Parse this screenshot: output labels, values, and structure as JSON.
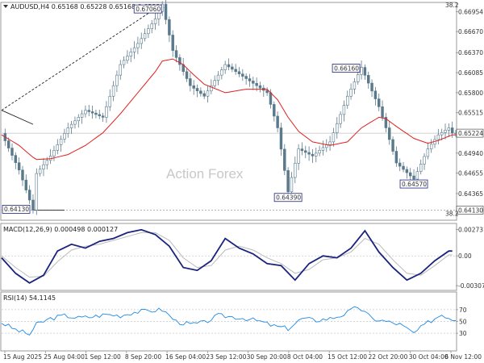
{
  "header": {
    "symbol_line": "AUDUSD,H4  0.65168 0.65228 0.65168 0.65224",
    "top_right": "38.2"
  },
  "watermark": "Action Forex",
  "colors": {
    "candle": "#5a7a8c",
    "ma": "#e02020",
    "macd": "#1a237e",
    "signal": "#bbbbbb",
    "rsi": "#1e88e5",
    "trend": "#222222"
  },
  "chart_data": [
    {
      "type": "line",
      "panel": "price",
      "xlim": [
        0,
        130
      ],
      "ylim": [
        0.6402,
        0.6705
      ],
      "yticks": [
        "0.66954",
        "0.66670",
        "0.66370",
        "0.66085",
        "0.65800",
        "0.65515",
        "0.65224",
        "0.64940",
        "0.64655",
        "0.64365",
        "0.64130"
      ],
      "ytick_values": [
        0.66954,
        0.6667,
        0.6637,
        0.66085,
        0.658,
        0.65515,
        0.65224,
        0.6494,
        0.64655,
        0.64365,
        0.6413
      ],
      "current_price": "0.65224",
      "current_value": 0.65224,
      "bottom_level": "0.64130",
      "bottom_value": 0.6413,
      "bottom_right_label": "38.2",
      "x": [
        0,
        5,
        9,
        10,
        14,
        19,
        24,
        29,
        34,
        39,
        44,
        46,
        49,
        52,
        54,
        58,
        64,
        70,
        76,
        79,
        82,
        85,
        89,
        94,
        99,
        103,
        108,
        110,
        113,
        118,
        122,
        125,
        128,
        129
      ],
      "close": [
        0.6522,
        0.647,
        0.6413,
        0.6465,
        0.649,
        0.653,
        0.6555,
        0.6545,
        0.662,
        0.665,
        0.6685,
        0.6706,
        0.664,
        0.661,
        0.659,
        0.6575,
        0.662,
        0.66,
        0.658,
        0.653,
        0.6439,
        0.65,
        0.649,
        0.651,
        0.6575,
        0.6616,
        0.656,
        0.653,
        0.648,
        0.6457,
        0.65,
        0.652,
        0.653,
        0.65224
      ],
      "ma": [
        0.652,
        0.6505,
        0.6488,
        0.6485,
        0.6486,
        0.6492,
        0.6505,
        0.6523,
        0.655,
        0.658,
        0.661,
        0.6625,
        0.6628,
        0.662,
        0.661,
        0.6592,
        0.658,
        0.6585,
        0.6585,
        0.657,
        0.6545,
        0.6525,
        0.651,
        0.6505,
        0.651,
        0.653,
        0.6545,
        0.6543,
        0.6532,
        0.6515,
        0.6508,
        0.6512,
        0.6518,
        0.652
      ],
      "annotations": [
        {
          "label": "0.67060",
          "x": 46,
          "y": 0.6706
        },
        {
          "label": "0.64130",
          "x": 9,
          "y": 0.6413
        },
        {
          "label": "0.64390",
          "x": 82,
          "y": 0.6439
        },
        {
          "label": "0.66160",
          "x": 103,
          "y": 0.6616
        },
        {
          "label": "0.64570",
          "x": 118,
          "y": 0.6457
        }
      ],
      "trendlines": [
        {
          "style": "dashed",
          "x": [
            0,
            46
          ],
          "y": [
            0.6555,
            0.6706
          ]
        },
        {
          "style": "solid",
          "x": [
            0,
            9
          ],
          "y": [
            0.6555,
            0.6535
          ]
        },
        {
          "style": "solid",
          "x": [
            9,
            18
          ],
          "y": [
            0.6413,
            0.6413
          ]
        }
      ]
    },
    {
      "type": "line",
      "panel": "macd",
      "title": "MACD(12,26,9) 0.000498 0.000127",
      "ylim": [
        -0.0034,
        0.0031
      ],
      "yticks": [
        "0.002731",
        "0.00",
        "-0.003077"
      ],
      "ytick_values": [
        0.002731,
        0.0,
        -0.003077
      ],
      "x": [
        0,
        4,
        8,
        12,
        16,
        20,
        24,
        28,
        32,
        36,
        40,
        44,
        48,
        52,
        56,
        60,
        64,
        68,
        72,
        76,
        80,
        84,
        88,
        92,
        96,
        100,
        104,
        108,
        112,
        116,
        120,
        124,
        128,
        129
      ],
      "macd": [
        -0.0002,
        -0.0018,
        -0.0028,
        -0.002,
        0.0005,
        0.0012,
        0.0008,
        0.0015,
        0.0018,
        0.0024,
        0.0027,
        0.0022,
        0.001,
        -0.0012,
        -0.0015,
        -0.0005,
        0.0018,
        0.0008,
        0.0002,
        -0.0008,
        -0.001,
        -0.0025,
        -0.0008,
        0.0,
        -0.0002,
        0.0008,
        0.0026,
        0.0004,
        -0.0012,
        -0.0025,
        -0.0018,
        -0.0005,
        0.0005,
        0.0005
      ],
      "signal": [
        0.0,
        -0.0012,
        -0.0022,
        -0.0021,
        -0.0006,
        0.0006,
        0.001,
        0.0012,
        0.0016,
        0.002,
        0.0024,
        0.0024,
        0.0016,
        -0.0002,
        -0.0012,
        -0.001,
        0.0006,
        0.001,
        0.0006,
        -0.0002,
        -0.0008,
        -0.0018,
        -0.0014,
        -0.0004,
        -0.0002,
        0.0004,
        0.0018,
        0.0012,
        -0.0004,
        -0.0018,
        -0.002,
        -0.001,
        0.0001,
        0.0001
      ]
    },
    {
      "type": "line",
      "panel": "rsi",
      "title": "RSI(14) 54.1145",
      "ylim": [
        0,
        100
      ],
      "yticks": [
        "70",
        "50",
        "30"
      ],
      "ytick_values": [
        70,
        50,
        30
      ],
      "x": [
        0,
        4,
        8,
        10,
        14,
        18,
        22,
        26,
        30,
        34,
        38,
        42,
        46,
        50,
        54,
        58,
        62,
        66,
        70,
        74,
        78,
        82,
        86,
        90,
        94,
        98,
        102,
        106,
        110,
        114,
        118,
        122,
        126,
        129
      ],
      "rsi": [
        48,
        36,
        28,
        45,
        55,
        60,
        56,
        58,
        62,
        60,
        66,
        68,
        70,
        50,
        45,
        48,
        60,
        58,
        55,
        50,
        42,
        38,
        55,
        52,
        55,
        62,
        75,
        55,
        50,
        45,
        30,
        48,
        62,
        54
      ]
    }
  ],
  "x_axis": {
    "labels": [
      "15 Aug 2025",
      "25 Aug 04:00",
      "1 Sep 12:00",
      "8 Sep 20:00",
      "16 Sep 04:00",
      "23 Sep 12:00",
      "30 Sep 20:00",
      "8 Oct 04:00",
      "15 Oct 12:00",
      "22 Oct 20:00",
      "30 Oct 04:00",
      "6 Nov 12:00"
    ]
  }
}
